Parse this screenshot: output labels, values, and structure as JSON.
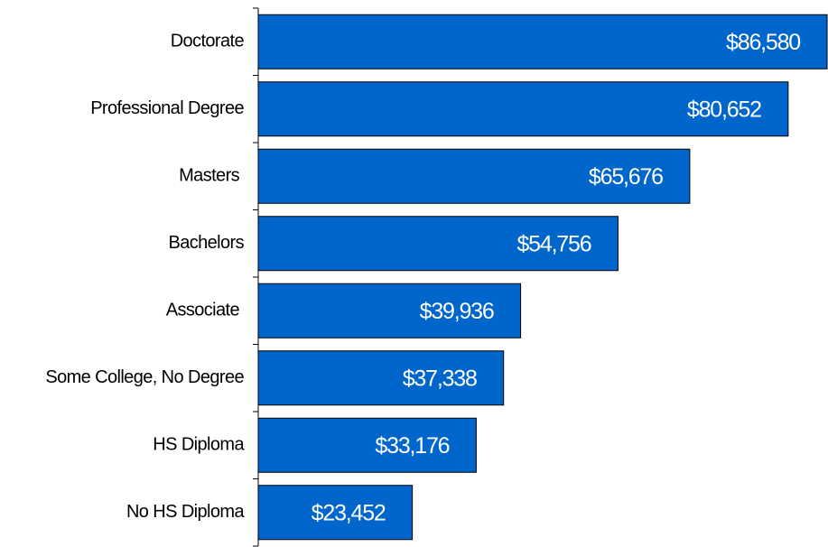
{
  "chart_data": {
    "type": "bar",
    "orientation": "horizontal",
    "categories": [
      "Doctorate",
      "Professional Degree",
      "Masters ",
      "Bachelors",
      "Associate ",
      "Some College, No Degree",
      "HS Diploma",
      "No HS Diploma"
    ],
    "values": [
      86580,
      80652,
      65676,
      54756,
      39936,
      37338,
      33176,
      23452
    ],
    "value_labels": [
      "$86,580",
      "$80,652",
      "$65,676",
      "$54,756",
      "$39,936",
      "$37,338",
      "$33,176",
      "$23,452"
    ],
    "color": "#0066cc"
  }
}
